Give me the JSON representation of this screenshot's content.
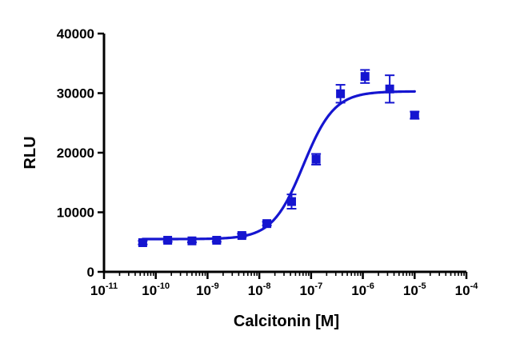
{
  "chart_data": {
    "type": "scatter",
    "xlabel": "Calcitonin [M]",
    "ylabel": "RLU",
    "x_scale": "log",
    "xlim": [
      1e-11,
      0.0001
    ],
    "ylim": [
      0,
      40000
    ],
    "x_ticks": [
      {
        "value": 1e-11,
        "base": "10",
        "exp": "-11"
      },
      {
        "value": 1e-10,
        "base": "10",
        "exp": "-10"
      },
      {
        "value": 1e-09,
        "base": "10",
        "exp": "-9"
      },
      {
        "value": 1e-08,
        "base": "10",
        "exp": "-8"
      },
      {
        "value": 1e-07,
        "base": "10",
        "exp": "-7"
      },
      {
        "value": 1e-06,
        "base": "10",
        "exp": "-6"
      },
      {
        "value": 1e-05,
        "base": "10",
        "exp": "-5"
      },
      {
        "value": 0.0001,
        "base": "10",
        "exp": "-4"
      }
    ],
    "y_ticks": [
      {
        "value": 0,
        "label": "0"
      },
      {
        "value": 10000,
        "label": "10000"
      },
      {
        "value": 20000,
        "label": "20000"
      },
      {
        "value": 30000,
        "label": "30000"
      },
      {
        "value": 40000,
        "label": "40000"
      }
    ],
    "color": "#1515d0",
    "marker": "square",
    "points": [
      {
        "x": 5.6e-11,
        "y": 4900,
        "err": 300
      },
      {
        "x": 1.7e-10,
        "y": 5300,
        "err": 250
      },
      {
        "x": 5e-10,
        "y": 5200,
        "err": 250
      },
      {
        "x": 1.5e-09,
        "y": 5300,
        "err": 250
      },
      {
        "x": 4.6e-09,
        "y": 6100,
        "err": 300
      },
      {
        "x": 1.4e-08,
        "y": 8100,
        "err": 300
      },
      {
        "x": 4.2e-08,
        "y": 11800,
        "err": 1200
      },
      {
        "x": 1.25e-07,
        "y": 18900,
        "err": 900
      },
      {
        "x": 3.7e-07,
        "y": 29900,
        "err": 1500
      },
      {
        "x": 1.1e-06,
        "y": 32800,
        "err": 1100
      },
      {
        "x": 3.3e-06,
        "y": 30700,
        "err": 2300
      },
      {
        "x": 1e-05,
        "y": 26300,
        "err": 600
      }
    ],
    "fit": {
      "model": "four-parameter logistic",
      "bottom": 5500,
      "top": 30300,
      "log_ec50": -7.15,
      "hill": 1.45,
      "x_from": 5.6e-11,
      "x_to": 1e-05
    }
  }
}
